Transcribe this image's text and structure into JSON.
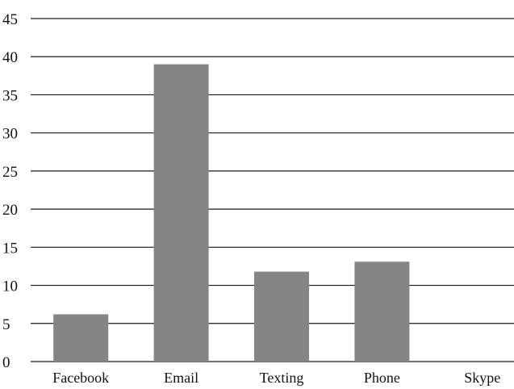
{
  "chart_data": {
    "type": "bar",
    "categories": [
      "Facebook",
      "Email",
      "Texting",
      "Phone",
      "Skype"
    ],
    "values": [
      6.2,
      39,
      11.8,
      13.1,
      0
    ],
    "ylim": [
      0,
      45
    ],
    "yticks": [
      0,
      5,
      10,
      15,
      20,
      25,
      30,
      35,
      40,
      45
    ],
    "grid": true,
    "colors": {
      "bar": "#858585",
      "grid": "#1a1a1a",
      "text": "#111111"
    }
  }
}
